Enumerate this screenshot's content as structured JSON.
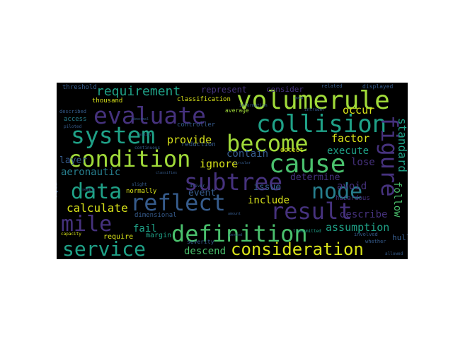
{
  "palette": {
    "background": "#ffffff",
    "canvas": "#000000",
    "yellow": "#d8e219",
    "lime": "#a0da39",
    "green": "#4ac16d",
    "teal": "#1fa187",
    "cyan": "#277f8e",
    "blue": "#365c8d",
    "indigo": "#46327e",
    "purple": "#440154"
  },
  "words": [
    {
      "text": "volumerule",
      "color": "lime"
    },
    {
      "text": "collision",
      "color": "teal"
    },
    {
      "text": "evaluate",
      "color": "indigo"
    },
    {
      "text": "system",
      "color": "teal"
    },
    {
      "text": "become",
      "color": "lime"
    },
    {
      "text": "condition",
      "color": "lime"
    },
    {
      "text": "cause",
      "color": "green"
    },
    {
      "text": "subtree",
      "color": "indigo"
    },
    {
      "text": "figure",
      "color": "indigo"
    },
    {
      "text": "data",
      "color": "teal"
    },
    {
      "text": "node",
      "color": "cyan"
    },
    {
      "text": "reflect",
      "color": "blue"
    },
    {
      "text": "result",
      "color": "indigo"
    },
    {
      "text": "mile",
      "color": "indigo"
    },
    {
      "text": "definition",
      "color": "green"
    },
    {
      "text": "service",
      "color": "teal"
    },
    {
      "text": "consideration",
      "color": "yellow"
    },
    {
      "text": "requirement",
      "color": "teal"
    },
    {
      "text": "assumption",
      "color": "teal"
    },
    {
      "text": "standard",
      "color": "teal"
    },
    {
      "text": "follow",
      "color": "green"
    },
    {
      "text": "calculate",
      "color": "yellow"
    },
    {
      "text": "describe",
      "color": "indigo"
    },
    {
      "text": "include",
      "color": "yellow"
    },
    {
      "text": "avoid",
      "color": "indigo"
    },
    {
      "text": "factor",
      "color": "yellow"
    },
    {
      "text": "execute",
      "color": "teal"
    },
    {
      "text": "occur",
      "color": "yellow"
    },
    {
      "text": "determine",
      "color": "indigo"
    },
    {
      "text": "aeronautic",
      "color": "cyan"
    },
    {
      "text": "ignore",
      "color": "yellow"
    },
    {
      "text": "provide",
      "color": "yellow"
    },
    {
      "text": "contain",
      "color": "blue"
    },
    {
      "text": "issue",
      "color": "blue"
    },
    {
      "text": "lose",
      "color": "indigo"
    },
    {
      "text": "fail",
      "color": "teal"
    },
    {
      "text": "descend",
      "color": "green"
    },
    {
      "text": "event",
      "color": "blue"
    },
    {
      "text": "layer",
      "color": "blue"
    },
    {
      "text": "represent",
      "color": "indigo"
    },
    {
      "text": "consider",
      "color": "indigo"
    },
    {
      "text": "hull",
      "color": "blue"
    },
    {
      "text": "rate",
      "color": "blue"
    },
    {
      "text": "margin",
      "color": "teal"
    },
    {
      "text": "threshold",
      "color": "blue"
    },
    {
      "text": "classification",
      "color": "yellow"
    },
    {
      "text": "thousand",
      "color": "yellow"
    },
    {
      "text": "reduction",
      "color": "blue"
    },
    {
      "text": "controller",
      "color": "blue"
    },
    {
      "text": "dimensional",
      "color": "blue"
    },
    {
      "text": "access",
      "color": "cyan"
    },
    {
      "text": "detect",
      "color": "yellow"
    },
    {
      "text": "normally",
      "color": "yellow"
    },
    {
      "text": "require",
      "color": "yellow"
    },
    {
      "text": "severity",
      "color": "blue"
    },
    {
      "text": "hazardous",
      "color": "indigo"
    },
    {
      "text": "average",
      "color": "lime"
    },
    {
      "text": "displayed",
      "color": "blue"
    },
    {
      "text": "related",
      "color": "blue"
    },
    {
      "text": "described",
      "color": "blue"
    },
    {
      "text": "piloted",
      "color": "blue"
    },
    {
      "text": "driver",
      "color": "blue"
    },
    {
      "text": "slight",
      "color": "blue"
    },
    {
      "text": "capacity",
      "color": "yellow"
    },
    {
      "text": "information",
      "color": "blue"
    },
    {
      "text": "continuous",
      "color": "blue"
    },
    {
      "text": "transmitted",
      "color": "teal"
    },
    {
      "text": "involved",
      "color": "blue"
    },
    {
      "text": "whether",
      "color": "blue"
    },
    {
      "text": "allowed",
      "color": "blue"
    },
    {
      "text": "acuity",
      "color": "blue"
    },
    {
      "text": "abnormal",
      "color": "blue"
    },
    {
      "text": "period",
      "color": "blue"
    },
    {
      "text": "amount",
      "color": "blue"
    },
    {
      "text": "good",
      "color": "blue"
    },
    {
      "text": "seeing",
      "color": "blue"
    },
    {
      "text": "circular",
      "color": "blue"
    },
    {
      "text": "classifies",
      "color": "blue"
    },
    {
      "text": "intruder",
      "color": "blue"
    }
  ]
}
